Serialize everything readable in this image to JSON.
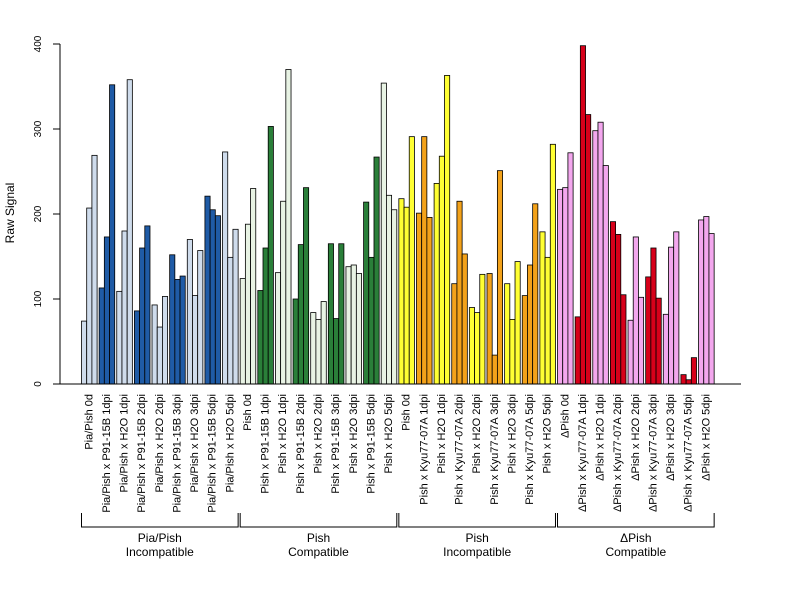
{
  "chart_data": {
    "type": "bar",
    "ylabel": "Raw Signal",
    "ylim": [
      0,
      400
    ],
    "yticks": [
      0,
      100,
      200,
      300,
      400
    ],
    "grid": false,
    "legend": "none",
    "categories": [
      "Pia/Pish 0d",
      "Pia/Pish x P91-15B 1dpi",
      "Pia/Pish x H2O 1dpi",
      "Pia/Pish x P91-15B 2dpi",
      "Pia/Pish x H2O 2dpi",
      "Pia/Pish x P91-15B 3dpi",
      "Pia/Pish x H2O 3dpi",
      "Pia/Pish x P91-15B 5dpi",
      "Pia/Pish x H2O 5dpi",
      "Pish 0d",
      "Pish x P91-15B 1dpi",
      "Pish x H2O 1dpi",
      "Pish x P91-15B 2dpi",
      "Pish x H2O 2dpi",
      "Pish x P91-15B 3dpi",
      "Pish x H2O 3dpi",
      "Pish x P91-15B 5dpi",
      "Pish x H2O 5dpi",
      "Pish 0d",
      "Pish x Kyu77-07A 1dpi",
      "Pish x H2O 1dpi",
      "Pish x Kyu77-07A 2dpi",
      "Pish x H2O 2dpi",
      "Pish x Kyu77-07A 3dpi",
      "Pish x H2O 3dpi",
      "Pish x Kyu77-07A 5dpi",
      "Pish x H2O 5dpi",
      "ΔPish 0d",
      "ΔPish x Kyu77-07A 1dpi",
      "ΔPish x H2O 1dpi",
      "ΔPish x Kyu77-07A 2dpi",
      "ΔPish x H2O 2dpi",
      "ΔPish x Kyu77-07A 3dpi",
      "ΔPish x H2O 3dpi",
      "ΔPish x Kyu77-07A 5dpi",
      "ΔPish x H2O 5dpi"
    ],
    "values": [
      [
        74,
        207,
        269
      ],
      [
        113,
        173,
        352
      ],
      [
        109,
        180,
        358
      ],
      [
        86,
        160,
        186
      ],
      [
        93,
        67,
        103
      ],
      [
        152,
        123,
        127
      ],
      [
        170,
        104,
        157
      ],
      [
        221,
        205,
        198
      ],
      [
        273,
        149,
        182
      ],
      [
        124,
        188,
        230
      ],
      [
        110,
        160,
        303
      ],
      [
        131,
        215,
        370
      ],
      [
        100,
        164,
        231
      ],
      [
        84,
        76,
        97
      ],
      [
        165,
        77,
        165
      ],
      [
        138,
        140,
        130
      ],
      [
        214,
        149,
        267
      ],
      [
        354,
        222,
        205
      ],
      [
        218,
        208,
        291
      ],
      [
        201,
        291,
        196
      ],
      [
        236,
        268,
        363
      ],
      [
        118,
        215,
        153
      ],
      [
        90,
        84,
        129
      ],
      [
        130,
        34,
        251
      ],
      [
        118,
        76,
        144
      ],
      [
        104,
        140,
        212
      ],
      [
        179,
        149,
        282
      ],
      [
        229,
        231,
        272
      ],
      [
        79,
        398,
        317
      ],
      [
        298,
        308,
        257
      ],
      [
        191,
        176,
        105
      ],
      [
        75,
        173,
        102
      ],
      [
        126,
        160,
        101
      ],
      [
        82,
        161,
        179
      ],
      [
        11,
        5,
        31
      ],
      [
        193,
        197,
        177
      ]
    ],
    "colors": [
      "#cfdcec",
      "#1f5ba6",
      "#cfdcec",
      "#1f5ba6",
      "#cfdcec",
      "#1f5ba6",
      "#cfdcec",
      "#1f5ba6",
      "#cfdcec",
      "#e8f3e4",
      "#2a7f39",
      "#e8f3e4",
      "#2a7f39",
      "#e8f3e4",
      "#2a7f39",
      "#e8f3e4",
      "#2a7f39",
      "#e8f3e4",
      "#ffff33",
      "#f3a21a",
      "#ffff33",
      "#f3a21a",
      "#ffff33",
      "#f3a21a",
      "#ffff33",
      "#f3a21a",
      "#ffff33",
      "#f3a7ee",
      "#d7001a",
      "#f3a7ee",
      "#d7001a",
      "#f3a7ee",
      "#d7001a",
      "#f3a7ee",
      "#d7001a",
      "#f3a7ee"
    ],
    "groups": [
      {
        "line1": "Pia/Pish",
        "line2": "Incompatible",
        "start": 0,
        "end": 8
      },
      {
        "line1": "Pish",
        "line2": "Compatible",
        "start": 9,
        "end": 17
      },
      {
        "line1": "Pish",
        "line2": "Incompatible",
        "start": 18,
        "end": 26
      },
      {
        "line1": "ΔPish",
        "line2": "Compatible",
        "start": 27,
        "end": 35
      }
    ]
  }
}
